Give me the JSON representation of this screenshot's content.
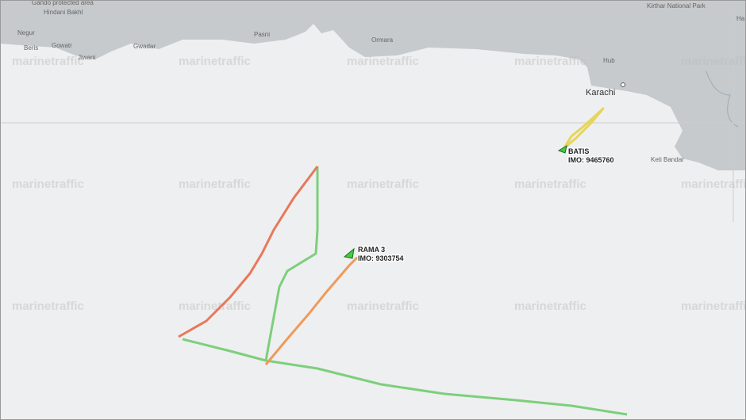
{
  "map": {
    "watermark": "marinetraffic",
    "places": [
      "Gando protected area",
      "Hindani Bakhl",
      "Negur",
      "Beris",
      "Gowatr",
      "Jiwani",
      "Gwadar",
      "Pasni",
      "Ormara",
      "Hub",
      "Karachi",
      "Kirthar National Park",
      "Keti Bandar",
      "Ha"
    ],
    "vessels": [
      {
        "name": "BATIS",
        "imo": "IMO: 9465760"
      },
      {
        "name": "RAMA 3",
        "imo": "IMO: 9303754"
      }
    ]
  }
}
